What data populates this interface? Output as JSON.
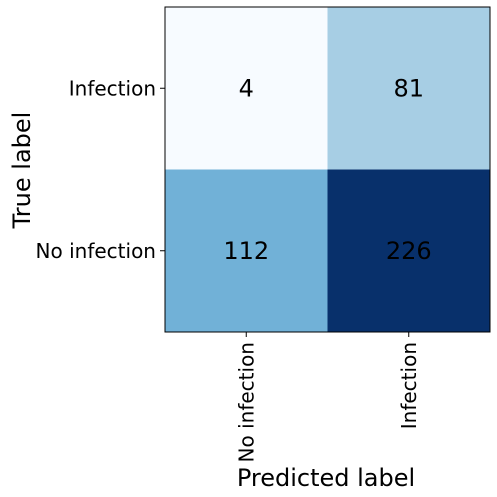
{
  "chart_data": {
    "type": "heatmap",
    "title": "",
    "xlabel": "Predicted label",
    "ylabel": "True label",
    "x_categories": [
      "No infection",
      "Infection"
    ],
    "y_categories": [
      "Infection",
      "No infection"
    ],
    "values": [
      [
        4,
        81
      ],
      [
        112,
        226
      ]
    ],
    "colormap": "Blues",
    "colors": {
      "low": "#f7fbff",
      "high": "#08306b",
      "text_dark": "#000000"
    }
  }
}
